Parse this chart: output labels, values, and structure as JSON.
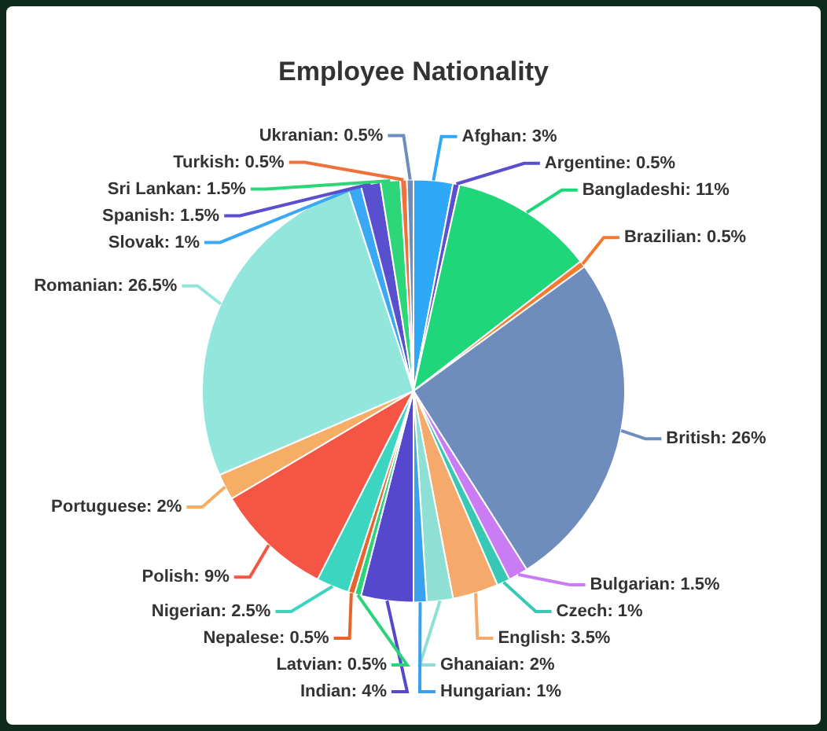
{
  "chart_data": {
    "type": "pie",
    "title": "Employee Nationality",
    "categories": [
      "Afghan",
      "Argentine",
      "Bangladeshi",
      "Brazilian",
      "British",
      "Bulgarian",
      "Czech",
      "English",
      "Ghanaian",
      "Hungarian",
      "Indian",
      "Latvian",
      "Nepalese",
      "Nigerian",
      "Polish",
      "Portuguese",
      "Romanian",
      "Slovak",
      "Spanish",
      "Sri Lankan",
      "Turkish",
      "Ukranian"
    ],
    "values": [
      3,
      0.5,
      11,
      0.5,
      26,
      1.5,
      1,
      3.5,
      2,
      1,
      4,
      0.5,
      0.5,
      2.5,
      9,
      2,
      26.5,
      1,
      1.5,
      1.5,
      0.5,
      0.5
    ],
    "value_labels": [
      "3%",
      "0.5%",
      "11%",
      "0.5%",
      "26%",
      "1.5%",
      "1%",
      "3.5%",
      "2%",
      "1%",
      "4%",
      "0.5%",
      "0.5%",
      "2.5%",
      "9%",
      "2%",
      "26.5%",
      "1%",
      "1.5%",
      "1.5%",
      "0.5%",
      "0.5%"
    ],
    "colors": [
      "#2fa8f7",
      "#5a4fcf",
      "#1fd67a",
      "#f57a30",
      "#6e8dbd",
      "#c97cf3",
      "#37c9b5",
      "#f5a96a",
      "#8fe0d4",
      "#3aa0f0",
      "#5548cc",
      "#2bd37a",
      "#e8642c",
      "#3cd6c0",
      "#f45545",
      "#f6ad66",
      "#93e6dc",
      "#3aa8f5",
      "#5a4fcf",
      "#2ed67a",
      "#f0703a",
      "#6e8dbd"
    ],
    "legend": false
  }
}
